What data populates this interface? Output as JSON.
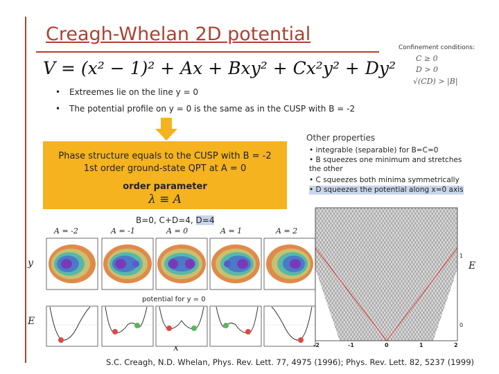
{
  "title": "Creagh-Whelan 2D potential",
  "confinement": {
    "label": "Confinement conditions:",
    "conditions": [
      "C ≥ 0",
      "D > 0",
      "√(CD) > |B|"
    ]
  },
  "equation": "V = (x² − 1)² + Ax + Bxy² + Cx²y² + Dy²",
  "bullets": [
    "Extreemes lie on the line y = 0",
    "The potential profile on y = 0 is the same as in the CUSP with B = -2"
  ],
  "box": {
    "line1": "Phase structure equals to the CUSP with B = -2",
    "line2": "1st order ground-state QPT at A = 0",
    "line3": "order parameter",
    "line4": "λ ≡ A",
    "color": "#f4b31f"
  },
  "other": {
    "title": "Other properties",
    "items": [
      "integrable (separable) for B=C=0",
      "B squeezes one minimum and stretches the other",
      "C squeezes both minima symmetrically",
      "D squeezes the potential along x=0 axis"
    ]
  },
  "params": {
    "prefix": "B=0, C+D=4, ",
    "highlight": "D=4"
  },
  "a_values": [
    "A = -2",
    "A = -1",
    "A = 0",
    "A = 1",
    "A = 2"
  ],
  "axis_labels": {
    "y": "y",
    "E_left": "E",
    "x": "x",
    "E_right": "E"
  },
  "potential_label": "potential for y = 0",
  "spectrum": {
    "x_ticks": [
      "-2",
      "-1",
      "0",
      "1",
      "2"
    ],
    "y_ticks": [
      "1",
      "0"
    ]
  },
  "citation": "S.C. Creagh, N.D. Whelan, Phys. Rev. Lett. 77, 4975 (1996); Phys. Rev. Lett. 82, 5237 (1999)"
}
